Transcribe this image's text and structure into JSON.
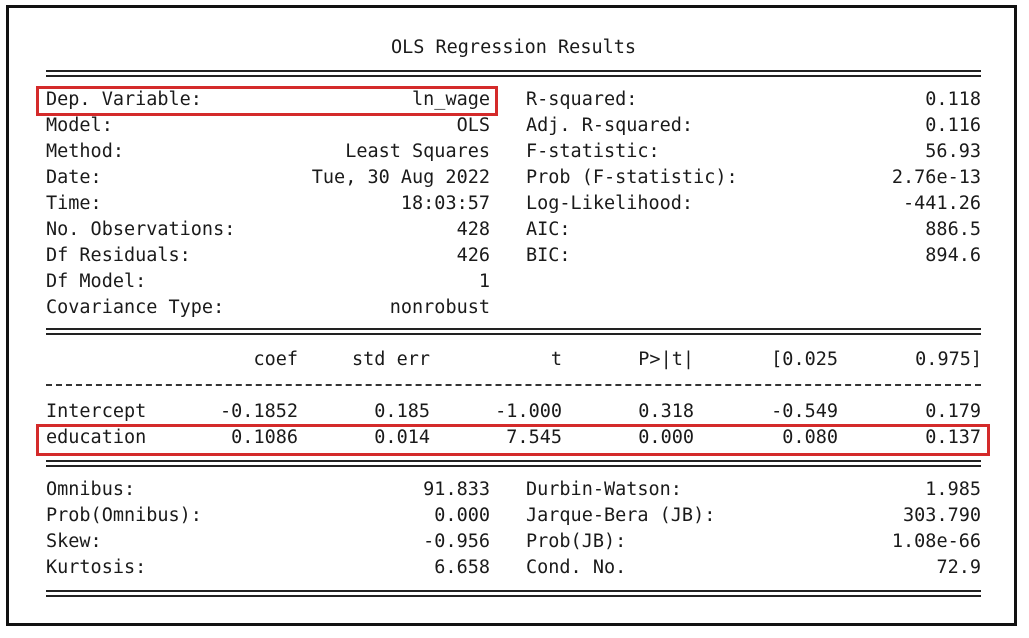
{
  "title": "OLS Regression Results",
  "model_info_left": [
    {
      "label": "Dep. Variable:",
      "value": "ln_wage"
    },
    {
      "label": "Model:",
      "value": "OLS"
    },
    {
      "label": "Method:",
      "value": "Least Squares"
    },
    {
      "label": "Date:",
      "value": "Tue, 30 Aug 2022"
    },
    {
      "label": "Time:",
      "value": "18:03:57"
    },
    {
      "label": "No. Observations:",
      "value": "428"
    },
    {
      "label": "Df Residuals:",
      "value": "426"
    },
    {
      "label": "Df Model:",
      "value": "1"
    },
    {
      "label": "Covariance Type:",
      "value": "nonrobust"
    }
  ],
  "model_info_right": [
    {
      "label": "R-squared:",
      "value": "0.118"
    },
    {
      "label": "Adj. R-squared:",
      "value": "0.116"
    },
    {
      "label": "F-statistic:",
      "value": "56.93"
    },
    {
      "label": "Prob (F-statistic):",
      "value": "2.76e-13"
    },
    {
      "label": "Log-Likelihood:",
      "value": "-441.26"
    },
    {
      "label": "AIC:",
      "value": "886.5"
    },
    {
      "label": "BIC:",
      "value": "894.6"
    }
  ],
  "coef_table": {
    "headers": [
      "coef",
      "std err",
      "t",
      "P>|t|",
      "[0.025",
      "0.975]"
    ],
    "rows": [
      {
        "name": "Intercept",
        "values": [
          "-0.1852",
          "0.185",
          "-1.000",
          "0.318",
          "-0.549",
          "0.179"
        ]
      },
      {
        "name": "education",
        "values": [
          "0.1086",
          "0.014",
          "7.545",
          "0.000",
          "0.080",
          "0.137"
        ]
      }
    ]
  },
  "diagnostics_left": [
    {
      "label": "Omnibus:",
      "value": "91.833"
    },
    {
      "label": "Prob(Omnibus):",
      "value": "0.000"
    },
    {
      "label": "Skew:",
      "value": "-0.956"
    },
    {
      "label": "Kurtosis:",
      "value": "6.658"
    }
  ],
  "diagnostics_right": [
    {
      "label": "Durbin-Watson:",
      "value": "1.985"
    },
    {
      "label": "Jarque-Bera (JB):",
      "value": "303.790"
    },
    {
      "label": "Prob(JB):",
      "value": "1.08e-66"
    },
    {
      "label": "Cond. No.",
      "value": "72.9"
    }
  ],
  "highlight_color": "#d42a2a"
}
